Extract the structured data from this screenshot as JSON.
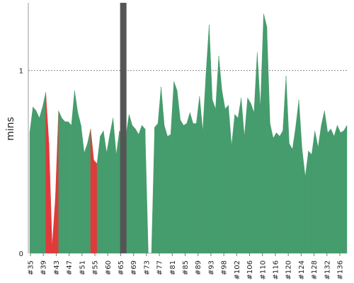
{
  "colors": {
    "pass": "#459c6c",
    "fail": "#e03a3a",
    "marker": "#555555",
    "background": "#ffffff"
  },
  "chart_data": {
    "type": "area",
    "ylabel": "mins",
    "ylim": [
      0,
      1.37
    ],
    "yticks": [
      {
        "value": 0,
        "label": "0"
      },
      {
        "value": 1,
        "label": "1"
      }
    ],
    "reference_lines": [
      1
    ],
    "x_tick_labels": [
      "#35",
      "#39",
      "#43",
      "#47",
      "#51",
      "#55",
      "#60",
      "#65",
      "#69",
      "#73",
      "#77",
      "#81",
      "#85",
      "#89",
      "#93",
      "#98",
      "#102",
      "#106",
      "#110",
      "#116",
      "#120",
      "#124",
      "#128",
      "#132",
      "#136"
    ],
    "vertical_marker_x": 29.2,
    "points": [
      {
        "x": 0,
        "y": 0.66,
        "s": "pass"
      },
      {
        "x": 1,
        "y": 0.8,
        "s": "pass"
      },
      {
        "x": 2,
        "y": 0.78,
        "s": "pass"
      },
      {
        "x": 3,
        "y": 0.74,
        "s": "pass"
      },
      {
        "x": 4,
        "y": 0.8,
        "s": "pass"
      },
      {
        "x": 5,
        "y": 0.88,
        "s": "pass"
      },
      {
        "x": 6,
        "y": 0.6,
        "s": "fail"
      },
      {
        "x": 7,
        "y": 0.04,
        "s": "fail"
      },
      {
        "x": 8,
        "y": 0.3,
        "s": "fail"
      },
      {
        "x": 9,
        "y": 0.78,
        "s": "pass"
      },
      {
        "x": 10,
        "y": 0.74,
        "s": "pass"
      },
      {
        "x": 11,
        "y": 0.72,
        "s": "pass"
      },
      {
        "x": 12,
        "y": 0.72,
        "s": "pass"
      },
      {
        "x": 13,
        "y": 0.7,
        "s": "pass"
      },
      {
        "x": 14,
        "y": 0.89,
        "s": "pass"
      },
      {
        "x": 15,
        "y": 0.77,
        "s": "pass"
      },
      {
        "x": 16,
        "y": 0.7,
        "s": "pass"
      },
      {
        "x": 17,
        "y": 0.55,
        "s": "pass"
      },
      {
        "x": 18,
        "y": 0.6,
        "s": "pass"
      },
      {
        "x": 19,
        "y": 0.68,
        "s": "pass"
      },
      {
        "x": 20,
        "y": 0.51,
        "s": "fail"
      },
      {
        "x": 21,
        "y": 0.49,
        "s": "pass"
      },
      {
        "x": 22,
        "y": 0.64,
        "s": "pass"
      },
      {
        "x": 23,
        "y": 0.67,
        "s": "pass"
      },
      {
        "x": 24,
        "y": 0.55,
        "s": "pass"
      },
      {
        "x": 25,
        "y": 0.65,
        "s": "pass"
      },
      {
        "x": 26,
        "y": 0.74,
        "s": "pass"
      },
      {
        "x": 27,
        "y": 0.54,
        "s": "pass"
      },
      {
        "x": 28,
        "y": 0.67,
        "s": "pass"
      },
      {
        "x": 29,
        "y": 0.64,
        "s": "pass"
      },
      {
        "x": 30,
        "y": 0.64,
        "s": "pass"
      },
      {
        "x": 31,
        "y": 0.76,
        "s": "pass"
      },
      {
        "x": 32,
        "y": 0.7,
        "s": "pass"
      },
      {
        "x": 33,
        "y": 0.68,
        "s": "pass"
      },
      {
        "x": 34,
        "y": 0.65,
        "s": "pass"
      },
      {
        "x": 35,
        "y": 0.7,
        "s": "pass"
      },
      {
        "x": 36,
        "y": 0.68,
        "s": "pass"
      },
      {
        "x": 37,
        "y": 0.0,
        "s": "pass"
      },
      {
        "x": 38,
        "y": 0.0,
        "s": "pass"
      },
      {
        "x": 39,
        "y": 0.69,
        "s": "pass"
      },
      {
        "x": 40,
        "y": 0.71,
        "s": "pass"
      },
      {
        "x": 41,
        "y": 0.91,
        "s": "pass"
      },
      {
        "x": 42,
        "y": 0.7,
        "s": "pass"
      },
      {
        "x": 43,
        "y": 0.64,
        "s": "pass"
      },
      {
        "x": 44,
        "y": 0.65,
        "s": "pass"
      },
      {
        "x": 45,
        "y": 0.94,
        "s": "pass"
      },
      {
        "x": 46,
        "y": 0.89,
        "s": "pass"
      },
      {
        "x": 47,
        "y": 0.73,
        "s": "pass"
      },
      {
        "x": 48,
        "y": 0.7,
        "s": "pass"
      },
      {
        "x": 49,
        "y": 0.71,
        "s": "pass"
      },
      {
        "x": 50,
        "y": 0.77,
        "s": "pass"
      },
      {
        "x": 51,
        "y": 0.71,
        "s": "pass"
      },
      {
        "x": 52,
        "y": 0.71,
        "s": "pass"
      },
      {
        "x": 53,
        "y": 0.86,
        "s": "pass"
      },
      {
        "x": 54,
        "y": 0.67,
        "s": "pass"
      },
      {
        "x": 55,
        "y": 0.98,
        "s": "pass"
      },
      {
        "x": 56,
        "y": 1.25,
        "s": "pass"
      },
      {
        "x": 57,
        "y": 0.84,
        "s": "pass"
      },
      {
        "x": 58,
        "y": 0.79,
        "s": "pass"
      },
      {
        "x": 59,
        "y": 1.08,
        "s": "pass"
      },
      {
        "x": 60,
        "y": 0.89,
        "s": "pass"
      },
      {
        "x": 61,
        "y": 0.79,
        "s": "pass"
      },
      {
        "x": 62,
        "y": 0.81,
        "s": "pass"
      },
      {
        "x": 63,
        "y": 0.59,
        "s": "pass"
      },
      {
        "x": 64,
        "y": 0.76,
        "s": "pass"
      },
      {
        "x": 65,
        "y": 0.74,
        "s": "pass"
      },
      {
        "x": 66,
        "y": 0.85,
        "s": "pass"
      },
      {
        "x": 67,
        "y": 0.64,
        "s": "pass"
      },
      {
        "x": 68,
        "y": 0.85,
        "s": "pass"
      },
      {
        "x": 69,
        "y": 0.82,
        "s": "pass"
      },
      {
        "x": 70,
        "y": 0.77,
        "s": "pass"
      },
      {
        "x": 71,
        "y": 1.1,
        "s": "pass"
      },
      {
        "x": 72,
        "y": 0.8,
        "s": "pass"
      },
      {
        "x": 73,
        "y": 1.31,
        "s": "pass"
      },
      {
        "x": 74,
        "y": 1.24,
        "s": "pass"
      },
      {
        "x": 75,
        "y": 0.71,
        "s": "pass"
      },
      {
        "x": 76,
        "y": 0.63,
        "s": "pass"
      },
      {
        "x": 77,
        "y": 0.66,
        "s": "pass"
      },
      {
        "x": 78,
        "y": 0.64,
        "s": "pass"
      },
      {
        "x": 79,
        "y": 0.67,
        "s": "pass"
      },
      {
        "x": 80,
        "y": 0.97,
        "s": "pass"
      },
      {
        "x": 81,
        "y": 0.6,
        "s": "pass"
      },
      {
        "x": 82,
        "y": 0.57,
        "s": "pass"
      },
      {
        "x": 83,
        "y": 0.69,
        "s": "pass"
      },
      {
        "x": 84,
        "y": 0.84,
        "s": "pass"
      },
      {
        "x": 85,
        "y": 0.57,
        "s": "pass"
      },
      {
        "x": 86,
        "y": 0.42,
        "s": "pass"
      },
      {
        "x": 87,
        "y": 0.56,
        "s": "pass"
      },
      {
        "x": 88,
        "y": 0.54,
        "s": "pass"
      },
      {
        "x": 89,
        "y": 0.67,
        "s": "pass"
      },
      {
        "x": 90,
        "y": 0.58,
        "s": "pass"
      },
      {
        "x": 91,
        "y": 0.7,
        "s": "pass"
      },
      {
        "x": 92,
        "y": 0.78,
        "s": "pass"
      },
      {
        "x": 93,
        "y": 0.66,
        "s": "pass"
      },
      {
        "x": 94,
        "y": 0.68,
        "s": "pass"
      },
      {
        "x": 95,
        "y": 0.64,
        "s": "pass"
      },
      {
        "x": 96,
        "y": 0.7,
        "s": "pass"
      },
      {
        "x": 97,
        "y": 0.66,
        "s": "pass"
      },
      {
        "x": 98,
        "y": 0.67,
        "s": "pass"
      },
      {
        "x": 99,
        "y": 0.7,
        "s": "pass"
      }
    ]
  }
}
